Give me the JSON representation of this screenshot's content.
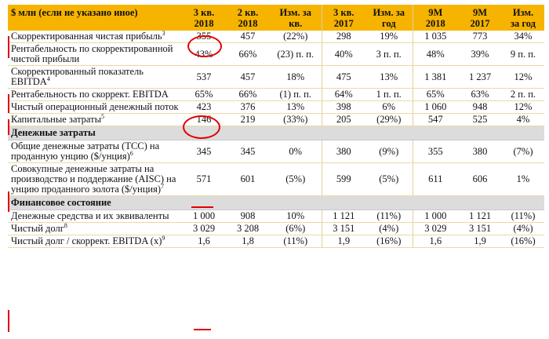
{
  "header": {
    "label": "$ млн (если не указано иное)",
    "cols": [
      [
        "3 кв.",
        "2018"
      ],
      [
        "2 кв.",
        "2018"
      ],
      [
        "Изм. за",
        "кв."
      ],
      [
        "3 кв.",
        "2017"
      ],
      [
        "Изм. за",
        "год"
      ],
      [
        "9М",
        "2018"
      ],
      [
        "9М",
        "2017"
      ],
      [
        "Изм.",
        "за год"
      ]
    ]
  },
  "rows": [
    {
      "label": "Скорректированная чистая прибыль",
      "sup": "3",
      "v": [
        "355",
        "457",
        "(22%)",
        "298",
        "19%",
        "1 035",
        "773",
        "34%"
      ]
    },
    {
      "label": "Рентабельность по скорректированной чистой прибыли",
      "sup": "",
      "v": [
        "43%",
        "66%",
        "(23) п. п.",
        "40%",
        "3 п. п.",
        "48%",
        "39%",
        "9 п. п."
      ]
    },
    {
      "label": "Скорректированный показатель EBITDA",
      "sup": "4",
      "v": [
        "537",
        "457",
        "18%",
        "475",
        "13%",
        "1 381",
        "1 237",
        "12%"
      ]
    },
    {
      "label": "Рентабельность по скоррект. EBITDA",
      "sup": "",
      "v": [
        "65%",
        "66%",
        "(1) п. п.",
        "64%",
        "1 п. п.",
        "65%",
        "63%",
        "2 п. п."
      ]
    },
    {
      "label": "Чистый операционный денежный поток",
      "sup": "",
      "v": [
        "423",
        "376",
        "13%",
        "398",
        "6%",
        "1 060",
        "948",
        "12%"
      ]
    },
    {
      "label": "Капитальные затраты",
      "sup": "5",
      "v": [
        "146",
        "219",
        "(33%)",
        "205",
        "(29%)",
        "547",
        "525",
        "4%"
      ]
    }
  ],
  "section1": "Денежные затраты",
  "rows2": [
    {
      "label": "Общие денежные затраты (TCC) на проданную унцию ($/унция)",
      "sup": "6",
      "v": [
        "345",
        "345",
        "0%",
        "380",
        "(9%)",
        "355",
        "380",
        "(7%)"
      ]
    },
    {
      "label": "Совокупные денежные затраты на производство и поддержание (AISC) на унцию проданного золота ($/унция)",
      "sup": "7",
      "v": [
        "571",
        "601",
        "(5%)",
        "599",
        "(5%)",
        "611",
        "606",
        "1%"
      ]
    }
  ],
  "section2": "Финансовое состояние",
  "rows3": [
    {
      "label": "Денежные средства и их эквиваленты",
      "sup": "",
      "v": [
        "1 000",
        "908",
        "10%",
        "1 121",
        "(11%)",
        "1 000",
        "1 121",
        "(11%)"
      ]
    },
    {
      "label": "Чистый долг",
      "sup": "8",
      "v": [
        "3 029",
        "3 208",
        "(6%)",
        "3 151",
        "(4%)",
        "3 029",
        "3 151",
        "(4%)"
      ]
    },
    {
      "label": "Чистый долг / скоррект. EBITDA (x)",
      "sup": "9",
      "v": [
        "1,6",
        "1,8",
        "(11%)",
        "1,9",
        "(16%)",
        "1,6",
        "1,9",
        "(16%)"
      ]
    }
  ],
  "annotation_color": "#e10000"
}
